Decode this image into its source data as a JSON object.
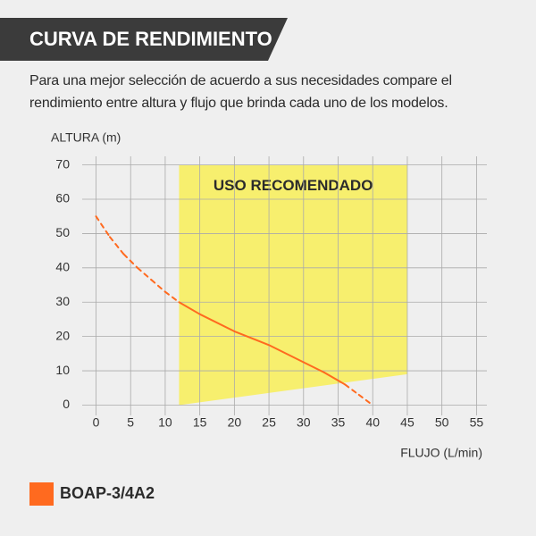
{
  "chart_data": {
    "type": "line",
    "title": "CURVA DE RENDIMIENTO",
    "subtitle": "Para una mejor selección de acuerdo a sus necesidades compare el rendimiento entre altura y flujo que brinda cada uno de los modelos.",
    "x_label": "FLUJO (L/min)",
    "y_label": "ALTURA (m)",
    "xlim": [
      -2,
      56.5
    ],
    "ylim": [
      -3,
      72.5
    ],
    "xticks": [
      0,
      5,
      10,
      15,
      20,
      25,
      30,
      35,
      40,
      45,
      50,
      55
    ],
    "yticks": [
      0,
      10,
      20,
      30,
      40,
      50,
      60,
      70
    ],
    "grid": true,
    "recommended_zone": {
      "label": "USO RECOMENDADO",
      "color": "#f7ef6e",
      "x": [
        12,
        12,
        45,
        45
      ],
      "y": [
        0,
        70,
        70,
        9
      ]
    },
    "series": [
      {
        "name": "BOAP-3/4A2",
        "color": "#ff6a1f",
        "solid_x": [
          12,
          36
        ],
        "x": [
          0,
          2,
          4,
          6,
          8,
          10,
          12,
          15,
          20,
          25,
          30,
          33,
          36,
          38,
          40
        ],
        "values": [
          55,
          49,
          44,
          40,
          36.5,
          33,
          30,
          26.5,
          21.5,
          17.5,
          12.5,
          9.5,
          6,
          3,
          0
        ]
      }
    ]
  }
}
